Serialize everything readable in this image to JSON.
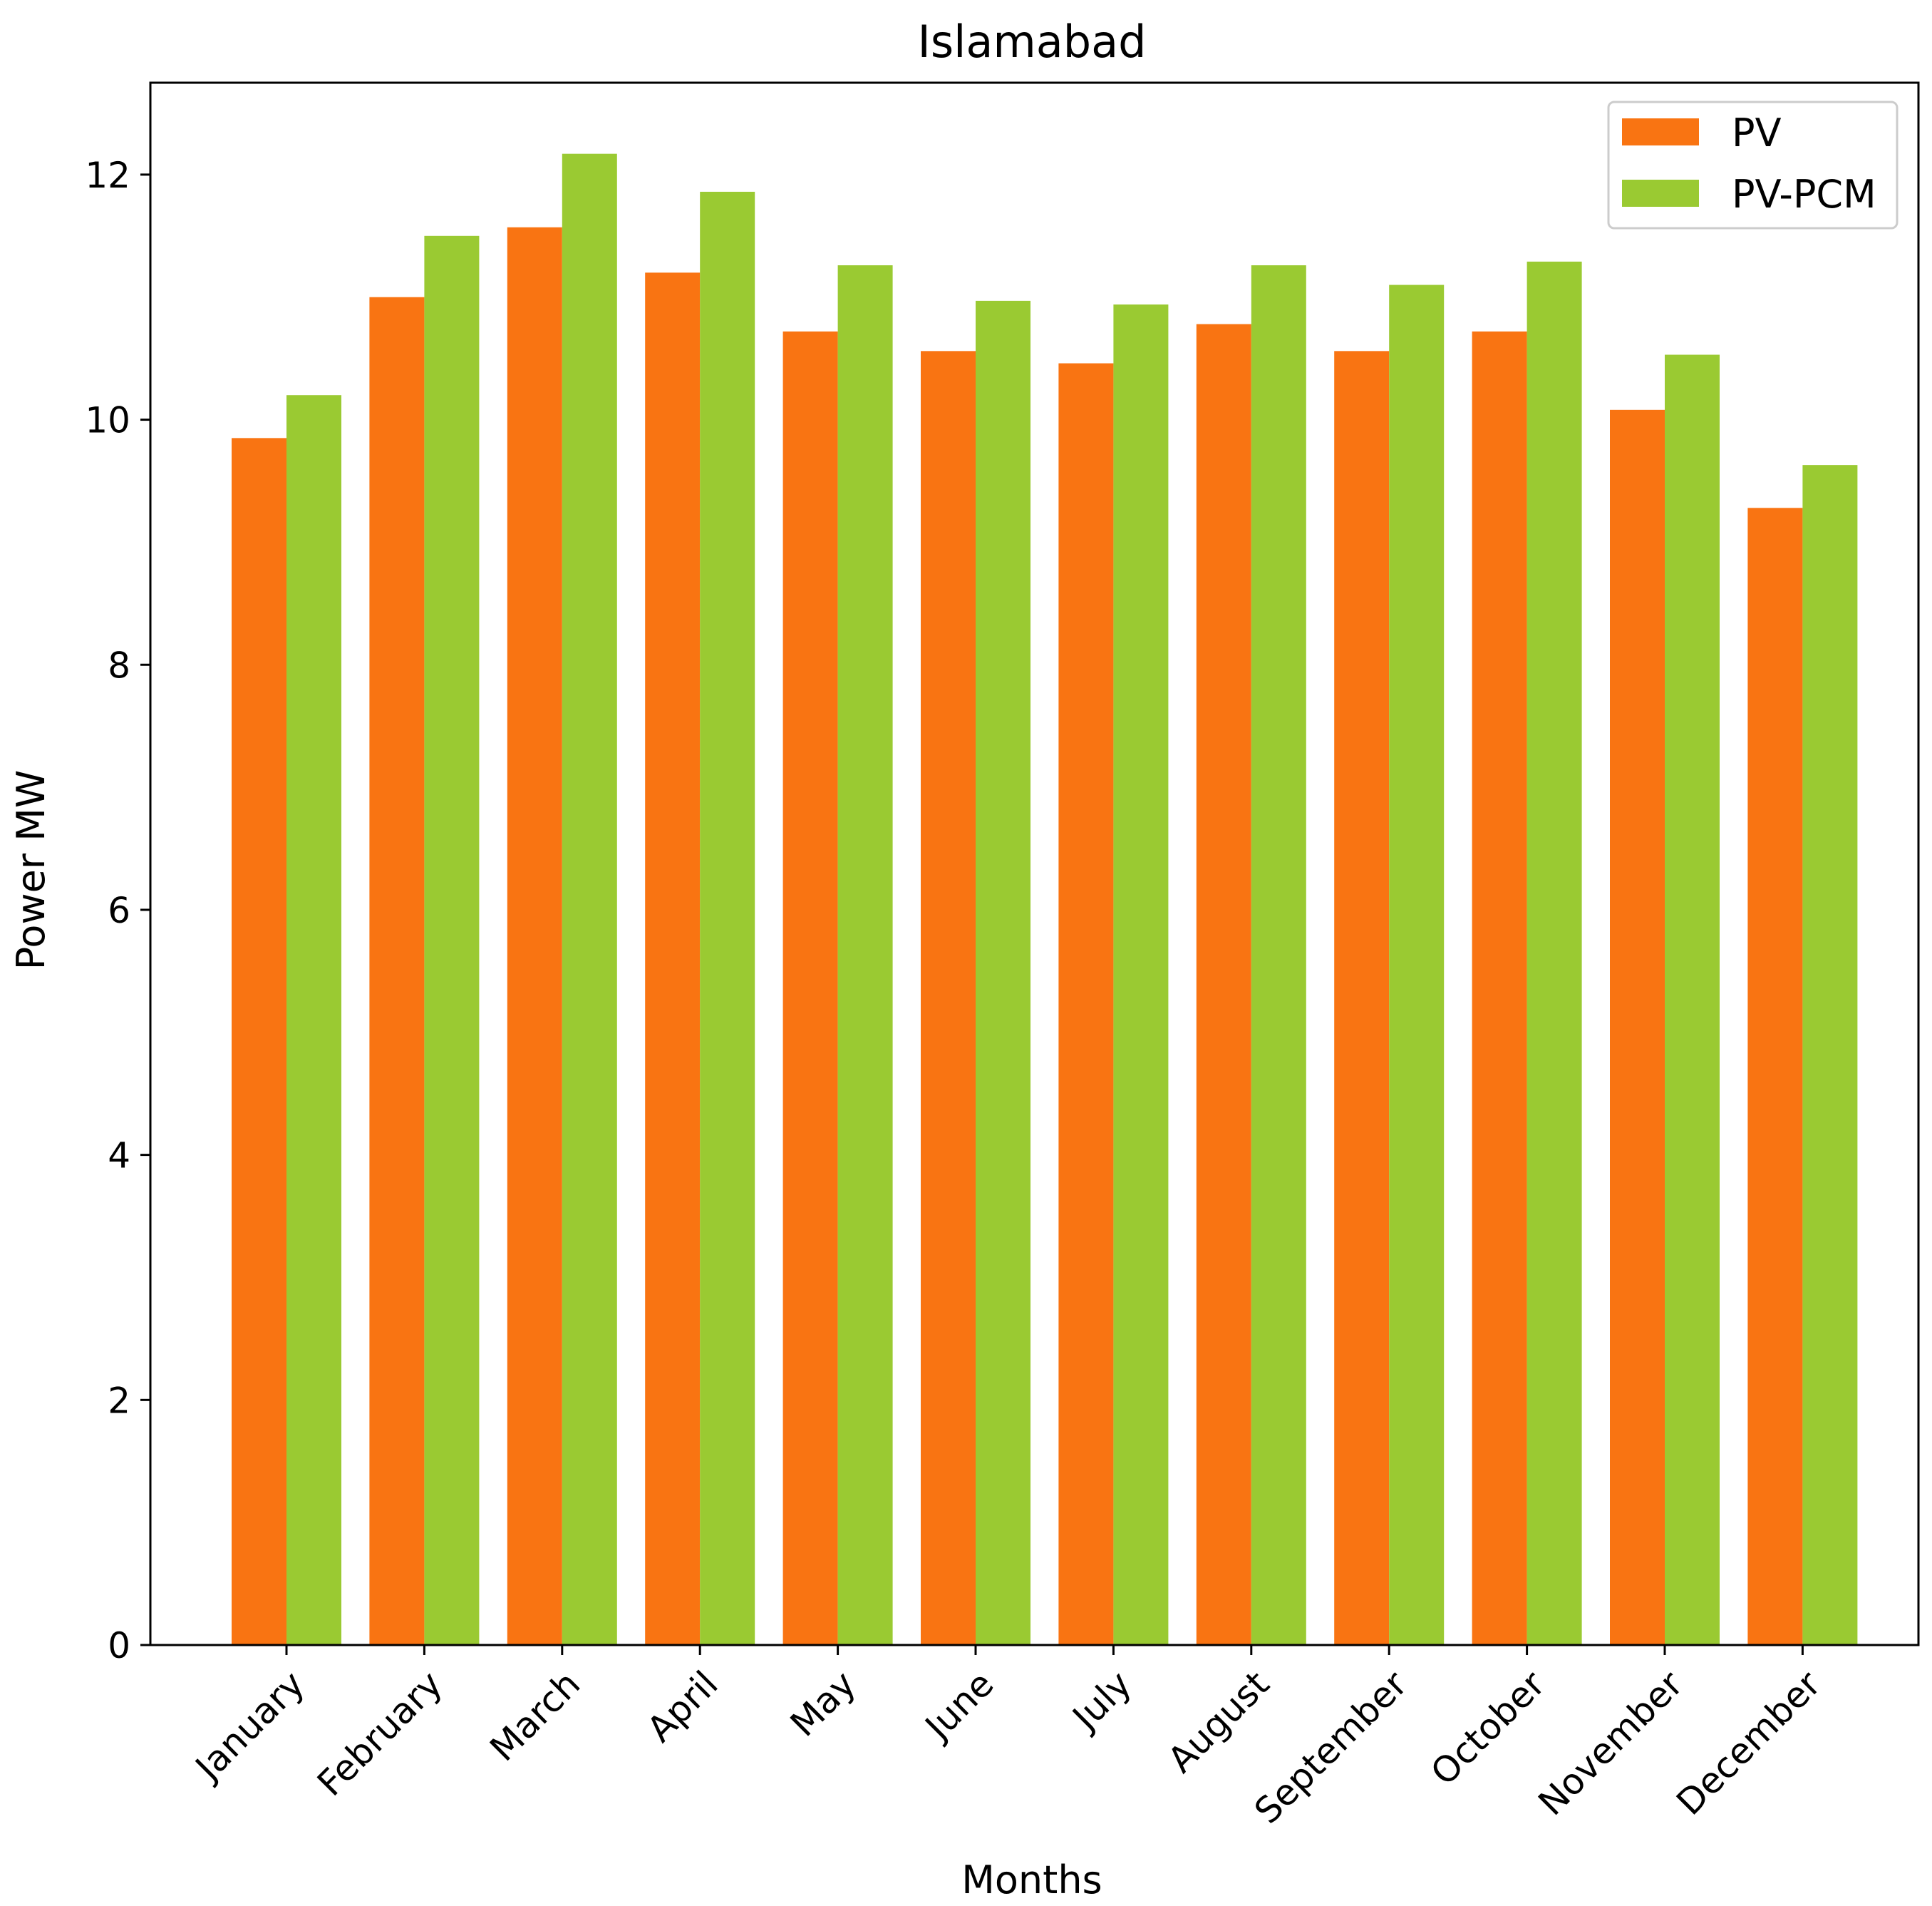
{
  "chart_data": {
    "type": "bar",
    "title": "Islamabad",
    "xlabel": "Months",
    "ylabel": "Power MW",
    "ylim": [
      0,
      12.75
    ],
    "yticks": [
      0,
      2,
      4,
      6,
      8,
      10,
      12
    ],
    "categories": [
      "January",
      "February",
      "March",
      "April",
      "May",
      "June",
      "July",
      "August",
      "September",
      "October",
      "November",
      "December"
    ],
    "series": [
      {
        "name": "PV",
        "color": "#f97412",
        "values": [
          9.85,
          11.0,
          11.57,
          11.2,
          10.72,
          10.56,
          10.46,
          10.78,
          10.56,
          10.72,
          10.08,
          9.28
        ]
      },
      {
        "name": "PV-PCM",
        "color": "#9aca32",
        "values": [
          10.2,
          11.5,
          12.17,
          11.86,
          11.26,
          10.97,
          10.94,
          11.26,
          11.1,
          11.29,
          10.53,
          9.63
        ]
      }
    ],
    "legend": {
      "position": "top-right"
    },
    "grid": false
  }
}
